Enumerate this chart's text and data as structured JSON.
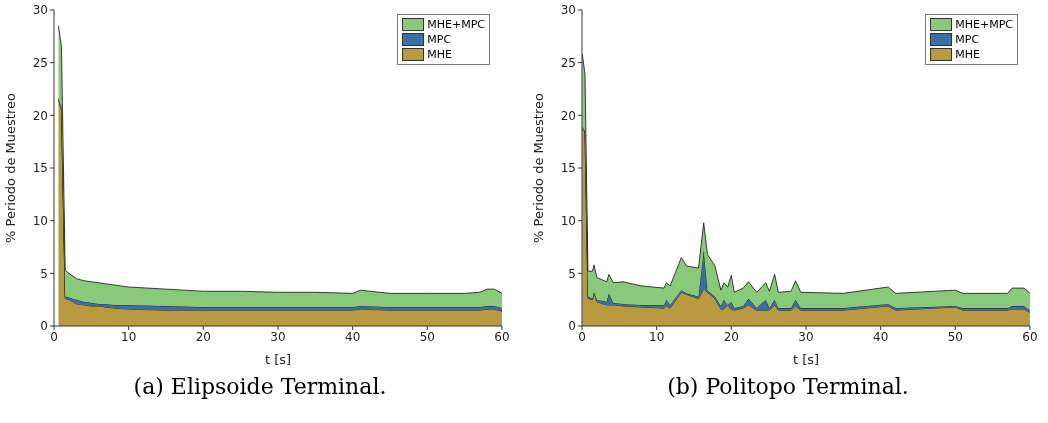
{
  "chart_data": [
    {
      "type": "area",
      "title": "(a) Elipsoide Terminal.",
      "xlabel": "t [s]",
      "ylabel": "% Periodo de Muestreo",
      "stacked": true,
      "legend": "top right",
      "xlim": [
        0,
        60
      ],
      "ylim": [
        0,
        30
      ],
      "xticks": [
        0,
        10,
        20,
        30,
        40,
        50,
        60
      ],
      "yticks": [
        0,
        5,
        10,
        15,
        20,
        25,
        30
      ],
      "x": [
        0.6,
        1.0,
        1.5,
        2,
        3,
        4,
        5,
        6,
        7,
        8,
        10,
        15,
        20,
        25,
        30,
        35,
        40,
        41,
        45,
        50,
        55,
        57,
        58,
        59,
        60
      ],
      "series": [
        {
          "name": "MHE",
          "color": "#b99a40",
          "values": [
            21.5,
            20.5,
            2.6,
            2.5,
            2.1,
            2.0,
            1.9,
            1.9,
            1.8,
            1.7,
            1.6,
            1.5,
            1.5,
            1.5,
            1.5,
            1.5,
            1.5,
            1.6,
            1.5,
            1.5,
            1.5,
            1.5,
            1.6,
            1.6,
            1.4
          ]
        },
        {
          "name": "MPC",
          "color": "#3a6ea5",
          "values": [
            0.1,
            0.3,
            0.2,
            0.2,
            0.4,
            0.3,
            0.3,
            0.2,
            0.3,
            0.3,
            0.4,
            0.4,
            0.3,
            0.3,
            0.3,
            0.3,
            0.3,
            0.3,
            0.3,
            0.3,
            0.3,
            0.3,
            0.3,
            0.3,
            0.3
          ]
        },
        {
          "name": "MHE+MPC",
          "color": "#88c97a",
          "values": [
            6.9,
            5.7,
            2.5,
            2.3,
            2.0,
            2.0,
            2.0,
            2.0,
            1.9,
            1.9,
            1.7,
            1.6,
            1.5,
            1.5,
            1.4,
            1.4,
            1.3,
            1.5,
            1.3,
            1.3,
            1.3,
            1.4,
            1.6,
            1.6,
            1.4
          ]
        }
      ]
    },
    {
      "type": "area",
      "title": "(b) Politopo Terminal.",
      "xlabel": "t [s]",
      "ylabel": "% Periodo de Muestreo",
      "stacked": true,
      "legend": "top right",
      "xlim": [
        0,
        60
      ],
      "ylim": [
        0,
        30
      ],
      "xticks": [
        0,
        10,
        20,
        30,
        40,
        50,
        60
      ],
      "yticks": [
        0,
        5,
        10,
        15,
        20,
        25,
        30
      ],
      "x": [
        0.05,
        0.4,
        0.8,
        1.4,
        1.6,
        2,
        3.3,
        3.6,
        4.2,
        5.5,
        8,
        11,
        11.3,
        11.8,
        13.3,
        14,
        15.6,
        16.3,
        16.8,
        17.8,
        18.6,
        19,
        19.5,
        20,
        20.4,
        21.6,
        22.3,
        23.4,
        24.6,
        25.1,
        25.8,
        26.3,
        28,
        28.6,
        29.3,
        35,
        41,
        42,
        50,
        51,
        57,
        57.6,
        59.2,
        60
      ],
      "series": [
        {
          "name": "MHE",
          "color": "#b99a40",
          "values": [
            18.8,
            18.4,
            2.6,
            2.5,
            3.2,
            2.3,
            2.0,
            2.0,
            2.0,
            1.9,
            1.8,
            1.7,
            1.9,
            1.7,
            3.2,
            3.0,
            2.6,
            3.5,
            3.2,
            2.6,
            1.6,
            1.6,
            2.0,
            1.6,
            1.5,
            1.7,
            2.0,
            1.5,
            1.5,
            1.5,
            2.0,
            1.5,
            1.5,
            1.9,
            1.5,
            1.5,
            1.9,
            1.5,
            1.8,
            1.5,
            1.5,
            1.6,
            1.6,
            1.3
          ]
        },
        {
          "name": "MPC",
          "color": "#3a6ea5",
          "values": [
            0.1,
            0.1,
            0.2,
            0.1,
            0,
            0.2,
            0.3,
            1.1,
            0.2,
            0.2,
            0.2,
            0.3,
            0.6,
            0.3,
            0.2,
            0.1,
            0.2,
            3.7,
            0.2,
            0.2,
            0.3,
            0.9,
            0,
            0.7,
            0.2,
            0.2,
            0.6,
            0.2,
            1.0,
            0.2,
            0.5,
            0.2,
            0.2,
            0.6,
            0.2,
            0.2,
            0.2,
            0.2,
            0.1,
            0.2,
            0.2,
            0.3,
            0.3,
            0.2
          ]
        },
        {
          "name": "MHE+MPC",
          "color": "#88c97a",
          "values": [
            6.9,
            5.4,
            2.4,
            2.6,
            2.6,
            2.1,
            1.9,
            1.8,
            1.9,
            2.1,
            1.8,
            1.6,
            1.6,
            1.8,
            3.1,
            2.6,
            2.7,
            2.6,
            3.4,
            2.9,
            1.5,
            1.6,
            1.7,
            2.5,
            1.5,
            1.7,
            1.6,
            1.5,
            1.6,
            1.6,
            2.4,
            1.5,
            1.6,
            1.8,
            1.5,
            1.4,
            1.6,
            1.4,
            1.5,
            1.4,
            1.4,
            1.7,
            1.7,
            1.6
          ]
        }
      ]
    }
  ]
}
